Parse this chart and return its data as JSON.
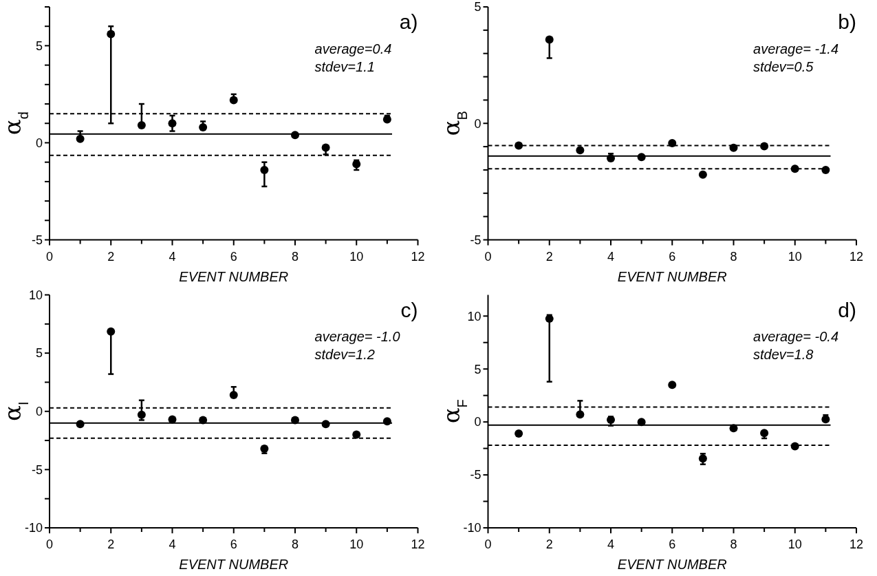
{
  "chart_data": [
    {
      "type": "scatter",
      "title": "a)",
      "xlabel": "EVENT NUMBER",
      "ylabel": "α$_{d}$",
      "annotations": [
        "average=0.4",
        "stdev=1.1"
      ],
      "marker": "circle",
      "grid": false,
      "x": [
        1,
        2,
        3,
        4,
        5,
        6,
        7,
        8,
        9,
        10,
        11
      ],
      "xlim": [
        0,
        12
      ],
      "xticks": [
        0,
        {
          "value": 1,
          "label": null
        },
        2,
        {
          "value": 3,
          "label": null
        },
        4,
        {
          "value": 5,
          "label": null
        },
        6,
        {
          "value": 7,
          "label": null
        },
        8,
        {
          "value": 9,
          "label": null
        },
        10,
        {
          "value": 11,
          "label": null
        },
        12
      ],
      "ylim": [
        -5,
        7
      ],
      "yticks": [
        -5,
        {
          "value": -4,
          "label": null
        },
        {
          "value": -3,
          "label": null
        },
        {
          "value": -2,
          "label": null
        },
        {
          "value": -1,
          "label": null
        },
        0,
        {
          "value": 1,
          "label": null
        },
        {
          "value": 2,
          "label": null
        },
        {
          "value": 3,
          "label": null
        },
        {
          "value": 4,
          "label": null
        },
        5,
        {
          "value": 6,
          "label": null
        },
        {
          "value": 7,
          "label": null
        }
      ],
      "series": [
        {
          "color": "#000000",
          "values": [
            0.2,
            5.6,
            0.9,
            1.0,
            0.8,
            2.2,
            -1.4,
            0.4,
            -0.25,
            -1.1,
            1.2
          ],
          "errors": [
            [
              0.1,
              0.6
            ],
            [
              1.0,
              6.0
            ],
            [
              0.8,
              2.0
            ],
            [
              0.6,
              1.4
            ],
            [
              0.7,
              1.1
            ],
            [
              2.1,
              2.5
            ],
            [
              -2.25,
              -1.0
            ],
            null,
            [
              -0.6,
              -0.15
            ],
            [
              -1.4,
              -0.9
            ],
            [
              1.1,
              1.4
            ]
          ]
        }
      ],
      "ref_lines": [
        {
          "axis": "y",
          "value": 0.45,
          "color": "#000000",
          "line_style": "solid"
        },
        {
          "axis": "y",
          "value": 1.5,
          "color": "#000000",
          "line_style": "dashed"
        },
        {
          "axis": "y",
          "value": -0.65,
          "color": "#000000",
          "line_style": "dashed"
        }
      ]
    },
    {
      "type": "scatter",
      "title": "b)",
      "xlabel": "EVENT NUMBER",
      "ylabel": "α$_{B}$",
      "annotations": [
        "average= -1.4",
        "stdev=0.5"
      ],
      "marker": "circle",
      "grid": false,
      "x": [
        1,
        2,
        3,
        4,
        5,
        6,
        7,
        8,
        9,
        10,
        11
      ],
      "xlim": [
        0,
        12
      ],
      "xticks": [
        0,
        {
          "value": 1,
          "label": null
        },
        2,
        {
          "value": 3,
          "label": null
        },
        4,
        {
          "value": 5,
          "label": null
        },
        6,
        {
          "value": 7,
          "label": null
        },
        8,
        {
          "value": 9,
          "label": null
        },
        10,
        {
          "value": 11,
          "label": null
        },
        12
      ],
      "ylim": [
        -5,
        5
      ],
      "yticks": [
        -5,
        {
          "value": -4,
          "label": null
        },
        {
          "value": -3,
          "label": null
        },
        {
          "value": -2,
          "label": null
        },
        {
          "value": -1,
          "label": null
        },
        0,
        {
          "value": 1,
          "label": null
        },
        {
          "value": 2,
          "label": null
        },
        {
          "value": 3,
          "label": null
        },
        {
          "value": 4,
          "label": null
        },
        5
      ],
      "series": [
        {
          "color": "#000000",
          "values": [
            -0.95,
            3.6,
            -1.15,
            -1.5,
            -1.45,
            -0.85,
            -2.2,
            -1.05,
            -0.98,
            -1.95,
            -2.0
          ],
          "errors": [
            null,
            [
              2.8,
              3.6
            ],
            null,
            [
              -1.5,
              -1.3
            ],
            null,
            null,
            null,
            null,
            null,
            null,
            null
          ]
        }
      ],
      "ref_lines": [
        {
          "axis": "y",
          "value": -1.4,
          "color": "#000000",
          "line_style": "solid"
        },
        {
          "axis": "y",
          "value": -0.95,
          "color": "#000000",
          "line_style": "dashed"
        },
        {
          "axis": "y",
          "value": -1.95,
          "color": "#000000",
          "line_style": "dashed"
        }
      ]
    },
    {
      "type": "scatter",
      "title": "c)",
      "xlabel": "EVENT NUMBER",
      "ylabel": "α$_{I}$",
      "annotations": [
        "average= -1.0",
        "stdev=1.2"
      ],
      "marker": "circle",
      "grid": false,
      "x": [
        1,
        2,
        3,
        4,
        5,
        6,
        7,
        8,
        9,
        10,
        11
      ],
      "xlim": [
        0,
        12
      ],
      "xticks": [
        0,
        {
          "value": 1,
          "label": null
        },
        2,
        {
          "value": 3,
          "label": null
        },
        4,
        {
          "value": 5,
          "label": null
        },
        6,
        {
          "value": 7,
          "label": null
        },
        8,
        {
          "value": 9,
          "label": null
        },
        10,
        {
          "value": 11,
          "label": null
        },
        12
      ],
      "ylim": [
        -10,
        10
      ],
      "yticks": [
        -10,
        {
          "value": -7.5,
          "label": null
        },
        -5,
        {
          "value": -2.5,
          "label": null
        },
        0,
        {
          "value": 2.5,
          "label": null
        },
        5,
        {
          "value": 7.5,
          "label": null
        },
        10
      ],
      "series": [
        {
          "color": "#000000",
          "values": [
            -1.1,
            6.85,
            -0.3,
            -0.7,
            -0.75,
            1.4,
            -3.2,
            -0.75,
            -1.1,
            -2.0,
            -0.85
          ],
          "errors": [
            null,
            [
              3.2,
              6.85
            ],
            [
              -0.75,
              0.95
            ],
            null,
            null,
            [
              1.4,
              2.1
            ],
            [
              -3.6,
              -3.0
            ],
            null,
            null,
            null,
            null
          ]
        }
      ],
      "ref_lines": [
        {
          "axis": "y",
          "value": -1.0,
          "color": "#000000",
          "line_style": "solid"
        },
        {
          "axis": "y",
          "value": 0.3,
          "color": "#000000",
          "line_style": "dashed"
        },
        {
          "axis": "y",
          "value": -2.3,
          "color": "#000000",
          "line_style": "dashed"
        }
      ]
    },
    {
      "type": "scatter",
      "title": "d)",
      "xlabel": "EVENT NUMBER",
      "ylabel": "α$_{F}$",
      "annotations": [
        "average= -0.4",
        "stdev=1.8"
      ],
      "marker": "circle",
      "grid": false,
      "x": [
        1,
        2,
        3,
        4,
        5,
        6,
        7,
        8,
        9,
        10,
        11
      ],
      "xlim": [
        0,
        12
      ],
      "xticks": [
        0,
        {
          "value": 1,
          "label": null
        },
        2,
        {
          "value": 3,
          "label": null
        },
        4,
        {
          "value": 5,
          "label": null
        },
        6,
        {
          "value": 7,
          "label": null
        },
        8,
        {
          "value": 9,
          "label": null
        },
        10,
        {
          "value": 11,
          "label": null
        },
        12
      ],
      "ylim": [
        -10,
        12
      ],
      "yticks": [
        -10,
        {
          "value": -7.5,
          "label": null
        },
        -5,
        {
          "value": -2.5,
          "label": null
        },
        0,
        {
          "value": 2.5,
          "label": null
        },
        5,
        {
          "value": 7.5,
          "label": null
        },
        10
      ],
      "series": [
        {
          "color": "#000000",
          "values": [
            -1.1,
            9.75,
            0.7,
            0.2,
            0.0,
            3.5,
            -3.45,
            -0.6,
            -1.05,
            -2.3,
            0.25
          ],
          "errors": [
            null,
            [
              3.8,
              10.1
            ],
            [
              0.7,
              2.0
            ],
            [
              -0.35,
              0.5
            ],
            null,
            null,
            [
              -4.0,
              -3.0
            ],
            null,
            [
              -1.55,
              -1.05
            ],
            null,
            [
              0.25,
              0.65
            ]
          ]
        }
      ],
      "ref_lines": [
        {
          "axis": "y",
          "value": -0.3,
          "color": "#000000",
          "line_style": "solid"
        },
        {
          "axis": "y",
          "value": 1.4,
          "color": "#000000",
          "line_style": "dashed"
        },
        {
          "axis": "y",
          "value": -2.2,
          "color": "#000000",
          "line_style": "dashed"
        }
      ]
    }
  ]
}
